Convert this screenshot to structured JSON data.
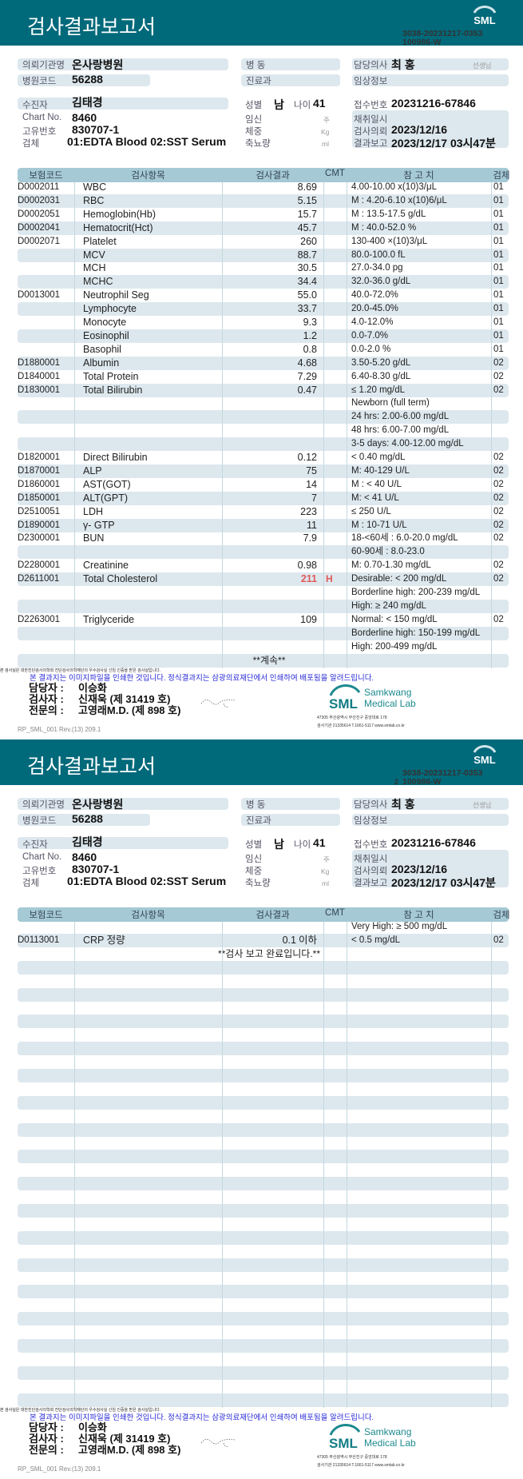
{
  "header": {
    "title": "검사결과보고서",
    "logo_text": "SML",
    "doc_no_line1": "3038-20231217-0353",
    "doc_no_line2": "100986-W"
  },
  "info": {
    "client_label": "의뢰기관명",
    "client": "온사랑병원",
    "hospcode_label": "병원코드",
    "hospcode": "56288",
    "ward_label": "병  동",
    "dept_label": "진료과",
    "doctor_label": "담당의사",
    "doctor": "최 홍",
    "doctor_suffix": "선생님",
    "clinical_label": "임상정보",
    "patient_label": "수진자",
    "patient": "김태경",
    "chart_label": "Chart No.",
    "chart": "8460",
    "id_label": "고유번호",
    "id": "830707-1",
    "specimen_label": "검체",
    "specimen": "01:EDTA Blood 02:SST Serum",
    "sex_label": "성별",
    "sex": "남",
    "age_label": "나이",
    "age": "41",
    "preg_label": "임신",
    "preg_unit": "주",
    "weight_label": "체중",
    "weight_unit": "Kg",
    "urine_label": "축뇨량",
    "urine_unit": "ml",
    "receipt_label": "접수번호",
    "receipt": "20231216-67846",
    "collect_label": "채취일시",
    "request_label": "검사의뢰",
    "request": "2023/12/16",
    "report_label": "결과보고",
    "report": "2023/12/17 03시47분"
  },
  "table_header": {
    "code": "보험코드",
    "name": "검사항목",
    "result": "검사결과",
    "cmt": "CMT",
    "ref": "참 고 치",
    "spec": "검체"
  },
  "pages": [
    {
      "page_no": "",
      "rows": [
        {
          "code": "D0002011",
          "name": "WBC",
          "result": "8.69",
          "ref": "4.00-10.00 x(10)3/μL",
          "spec": "01"
        },
        {
          "code": "D0002031",
          "name": "RBC",
          "result": "5.15",
          "ref": "M : 4.20-6.10 x(10)6/μL",
          "spec": "01"
        },
        {
          "code": "D0002051",
          "name": "Hemoglobin(Hb)",
          "result": "15.7",
          "ref": "M : 13.5-17.5 g/dL",
          "spec": "01"
        },
        {
          "code": "D0002041",
          "name": "Hematocrit(Hct)",
          "result": "45.7",
          "ref": "M : 40.0-52.0 %",
          "spec": "01"
        },
        {
          "code": "D0002071",
          "name": "Platelet",
          "result": "260",
          "ref": "130-400 ×(10)3/μL",
          "spec": "01"
        },
        {
          "code": "",
          "name": "MCV",
          "result": "88.7",
          "ref": "80.0-100.0 fL",
          "spec": "01"
        },
        {
          "code": "",
          "name": "MCH",
          "result": "30.5",
          "ref": "27.0-34.0 pg",
          "spec": "01"
        },
        {
          "code": "",
          "name": "MCHC",
          "result": "34.4",
          "ref": "32.0-36.0 g/dL",
          "spec": "01"
        },
        {
          "code": "D0013001",
          "name": "Neutrophil Seg",
          "result": "55.0",
          "ref": "40.0-72.0%",
          "spec": "01"
        },
        {
          "code": "",
          "name": "Lymphocyte",
          "result": "33.7",
          "ref": "20.0-45.0%",
          "spec": "01"
        },
        {
          "code": "",
          "name": "Monocyte",
          "result": "9.3",
          "ref": "4.0-12.0%",
          "spec": "01"
        },
        {
          "code": "",
          "name": "Eosinophil",
          "result": "1.2",
          "ref": "0.0-7.0%",
          "spec": "01"
        },
        {
          "code": "",
          "name": "Basophil",
          "result": "0.8",
          "ref": "0.0-2.0 %",
          "spec": "01"
        },
        {
          "code": "D1880001",
          "name": "Albumin",
          "result": "4.68",
          "ref": "3.50-5.20 g/dL",
          "spec": "02"
        },
        {
          "code": "D1840001",
          "name": "Total Protein",
          "result": "7.29",
          "ref": "6.40-8.30 g/dL",
          "spec": "02"
        },
        {
          "code": "D1830001",
          "name": "Total Bilirubin",
          "result": "0.47",
          "ref": "≤ 1.20 mg/dL",
          "spec": "02"
        },
        {
          "code": "",
          "name": "",
          "result": "",
          "ref": "Newborn (full term)",
          "spec": ""
        },
        {
          "code": "",
          "name": "",
          "result": "",
          "ref": "24 hrs: 2.00-6.00 mg/dL",
          "spec": ""
        },
        {
          "code": "",
          "name": "",
          "result": "",
          "ref": "48 hrs: 6.00-7.00 mg/dL",
          "spec": ""
        },
        {
          "code": "",
          "name": "",
          "result": "",
          "ref": "3-5 days: 4.00-12.00 mg/dL",
          "spec": ""
        },
        {
          "code": "D1820001",
          "name": "Direct Bilirubin",
          "result": "0.12",
          "ref": "< 0.40 mg/dL",
          "spec": "02"
        },
        {
          "code": "D1870001",
          "name": "ALP",
          "result": "75",
          "ref": "M: 40-129 U/L",
          "spec": "02"
        },
        {
          "code": "D1860001",
          "name": "AST(GOT)",
          "result": "14",
          "ref": "M : < 40 U/L",
          "spec": "02"
        },
        {
          "code": "D1850001",
          "name": "ALT(GPT)",
          "result": "7",
          "ref": "M: < 41 U/L",
          "spec": "02"
        },
        {
          "code": "D2510051",
          "name": "LDH",
          "result": "223",
          "ref": "≤ 250 U/L",
          "spec": "02"
        },
        {
          "code": "D1890001",
          "name": "γ- GTP",
          "result": "11",
          "ref": "M : 10-71 U/L",
          "spec": "02"
        },
        {
          "code": "D2300001",
          "name": "BUN",
          "result": "7.9",
          "ref": "18-<60세 : 6.0-20.0 mg/dL",
          "spec": "02"
        },
        {
          "code": "",
          "name": "",
          "result": "",
          "ref": "60-90세 : 8.0-23.0",
          "spec": ""
        },
        {
          "code": "D2280001",
          "name": "Creatinine",
          "result": "0.98",
          "ref": "M: 0.70-1.30 mg/dL",
          "spec": "02"
        },
        {
          "code": "D2611001",
          "name": "Total Cholesterol",
          "result": "211",
          "flag": "H",
          "ref": "Desirable: < 200 mg/dL",
          "spec": "02"
        },
        {
          "code": "",
          "name": "",
          "result": "",
          "ref": "Borderline high: 200-239 mg/dL",
          "spec": ""
        },
        {
          "code": "",
          "name": "",
          "result": "",
          "ref": "High: ≥ 240 mg/dL",
          "spec": ""
        },
        {
          "code": "D2263001",
          "name": "Triglyceride",
          "result": "109",
          "ref": "Normal: < 150 mg/dL",
          "spec": "02"
        },
        {
          "code": "",
          "name": "",
          "result": "",
          "ref": "Borderline high: 150-199 mg/dL",
          "spec": ""
        },
        {
          "code": "",
          "name": "",
          "result": "",
          "ref": "High: 200-499 mg/dL",
          "spec": ""
        },
        {
          "note": "**계속**"
        }
      ]
    },
    {
      "page_no": "2",
      "rows": [
        {
          "code": "",
          "name": "",
          "result": "",
          "ref": "Very High: ≥ 500 mg/dL",
          "spec": ""
        },
        {
          "code": "D0113001",
          "name": "CRP 정량",
          "result": "0.1",
          "result_suffix": "이하",
          "ref": "< 0.5 mg/dL",
          "spec": "02"
        },
        {
          "note": "**검사  보고  완료입니다.**"
        }
      ]
    }
  ],
  "footer": {
    "cert_text": "본 검사실은 대한진단검사의학회 진단검사의학재단의 우수검사실 신임 인증을 받은 검사실입니다.",
    "notice": "본 결과지는 이미지파일을 인쇄한 것입니다. 정식결과지는 삼광의료재단에서 인쇄하여 배포됨을 알려드립니다.",
    "manager_label": "담당자 :",
    "manager": "이승화",
    "tester_label": "검사자 :",
    "tester": "신재욱 (제 31419 호)",
    "specialist_label": "전문의 :",
    "specialist": "고영래M.D. (제 898 호)",
    "form_code": "RP_SML_001 Rev.(13) 209.1",
    "lab_name_1": "Samkwang",
    "lab_name_2": "Medical Lab",
    "address": "47305 부산광역시 부산진구 중앙대로 178",
    "contact": "검사기관 21335614 T.1661-5117 www.smlab.co.kr"
  },
  "colors": {
    "bar": "#00697a",
    "table_header": "#a5c9d5",
    "row_shade": "#dde8ee",
    "high_flag": "#e05a5a",
    "notice_blue": "#2727d6"
  }
}
